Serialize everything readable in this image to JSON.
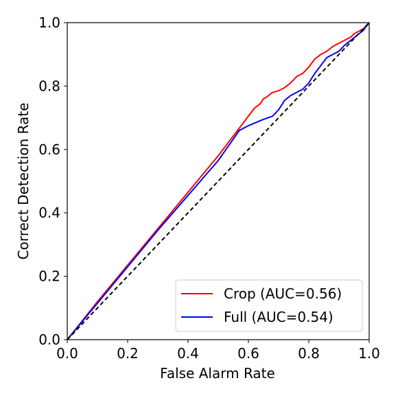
{
  "chart_data": {
    "type": "line",
    "xlabel": "False Alarm Rate",
    "ylabel": "Correct Detection Rate",
    "xlim": [
      0.0,
      1.0
    ],
    "ylim": [
      0.0,
      1.0
    ],
    "xticks": [
      "0.0",
      "0.2",
      "0.4",
      "0.6",
      "0.8",
      "1.0"
    ],
    "yticks": [
      "0.0",
      "0.2",
      "0.4",
      "0.6",
      "0.8",
      "1.0"
    ],
    "grid": false,
    "legend_position": "lower-right",
    "series": [
      {
        "name": "Crop (AUC=0.56)",
        "color": "#ff0000",
        "x": [
          0.0,
          0.1,
          0.2,
          0.3,
          0.4,
          0.5,
          0.58,
          0.6,
          0.62,
          0.64,
          0.65,
          0.66,
          0.68,
          0.7,
          0.72,
          0.74,
          0.76,
          0.78,
          0.8,
          0.82,
          0.84,
          0.86,
          0.88,
          0.9,
          0.92,
          0.94,
          0.95,
          0.96,
          0.98,
          1.0
        ],
        "y": [
          0.0,
          0.12,
          0.235,
          0.35,
          0.465,
          0.58,
          0.68,
          0.705,
          0.73,
          0.745,
          0.76,
          0.765,
          0.78,
          0.785,
          0.795,
          0.81,
          0.83,
          0.84,
          0.86,
          0.885,
          0.9,
          0.91,
          0.925,
          0.935,
          0.945,
          0.955,
          0.965,
          0.97,
          0.98,
          1.0
        ],
        "style": "solid"
      },
      {
        "name": "Full (AUC=0.54)",
        "color": "#0000ff",
        "x": [
          0.0,
          0.1,
          0.2,
          0.3,
          0.4,
          0.5,
          0.57,
          0.6,
          0.65,
          0.68,
          0.7,
          0.72,
          0.74,
          0.76,
          0.78,
          0.8,
          0.82,
          0.84,
          0.86,
          0.88,
          0.9,
          0.92,
          0.94,
          0.96,
          0.98,
          1.0
        ],
        "y": [
          0.0,
          0.115,
          0.23,
          0.345,
          0.455,
          0.565,
          0.66,
          0.675,
          0.695,
          0.705,
          0.725,
          0.755,
          0.77,
          0.78,
          0.79,
          0.81,
          0.84,
          0.865,
          0.89,
          0.9,
          0.91,
          0.93,
          0.945,
          0.96,
          0.975,
          1.0
        ],
        "style": "solid"
      },
      {
        "color": "#000000",
        "x": [
          0.0,
          1.0
        ],
        "y": [
          0.0,
          1.0
        ],
        "style": "dashed"
      }
    ]
  }
}
